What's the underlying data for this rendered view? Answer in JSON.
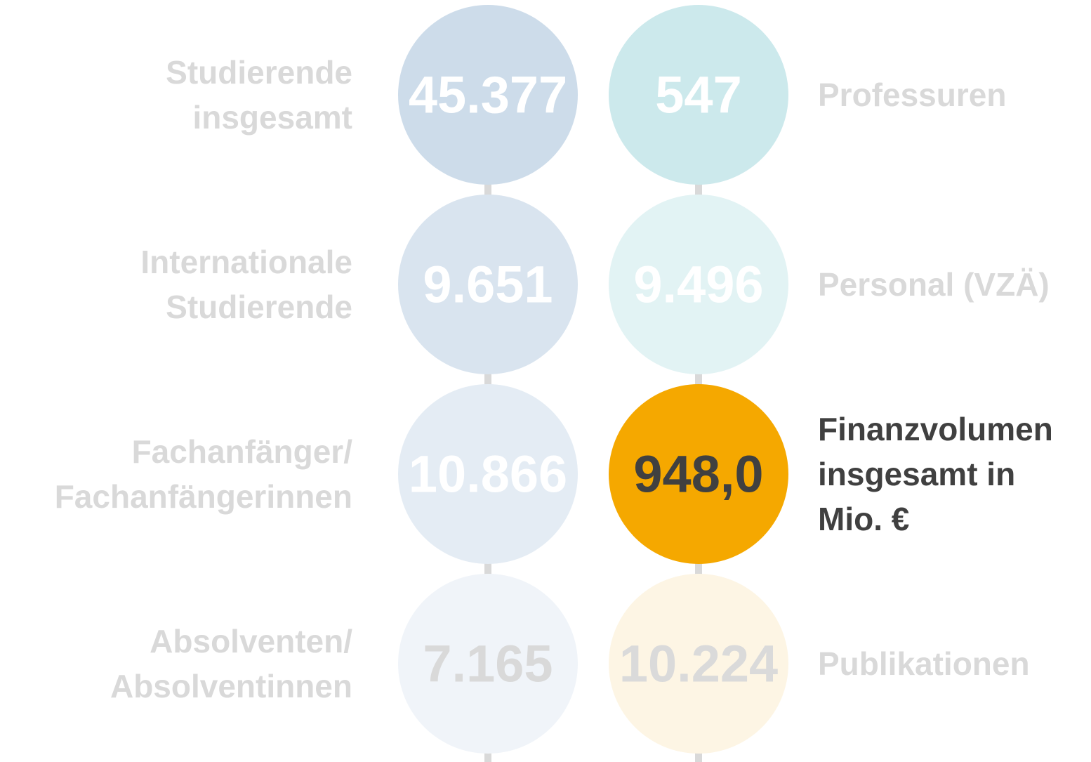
{
  "left": [
    {
      "value": "45.377",
      "label": [
        "Studierende",
        "insgesamt"
      ]
    },
    {
      "value": "9.651",
      "label": [
        "Internationale",
        "Studierende"
      ]
    },
    {
      "value": "10.866",
      "label": [
        "Fachanfänger/",
        "Fachanfängerinnen"
      ]
    },
    {
      "value": "7.165",
      "label": [
        "Absolventen/",
        "Absolventinnen"
      ]
    }
  ],
  "right": [
    {
      "value": "547",
      "label": [
        "Professuren"
      ]
    },
    {
      "value": "9.496",
      "label": [
        "Personal (VZÄ)"
      ]
    },
    {
      "value": "948,0",
      "label": [
        "Finanzvolumen",
        "insgesamt in",
        "Mio. €"
      ]
    },
    {
      "value": "10.224",
      "label": [
        "Publikationen"
      ]
    }
  ]
}
